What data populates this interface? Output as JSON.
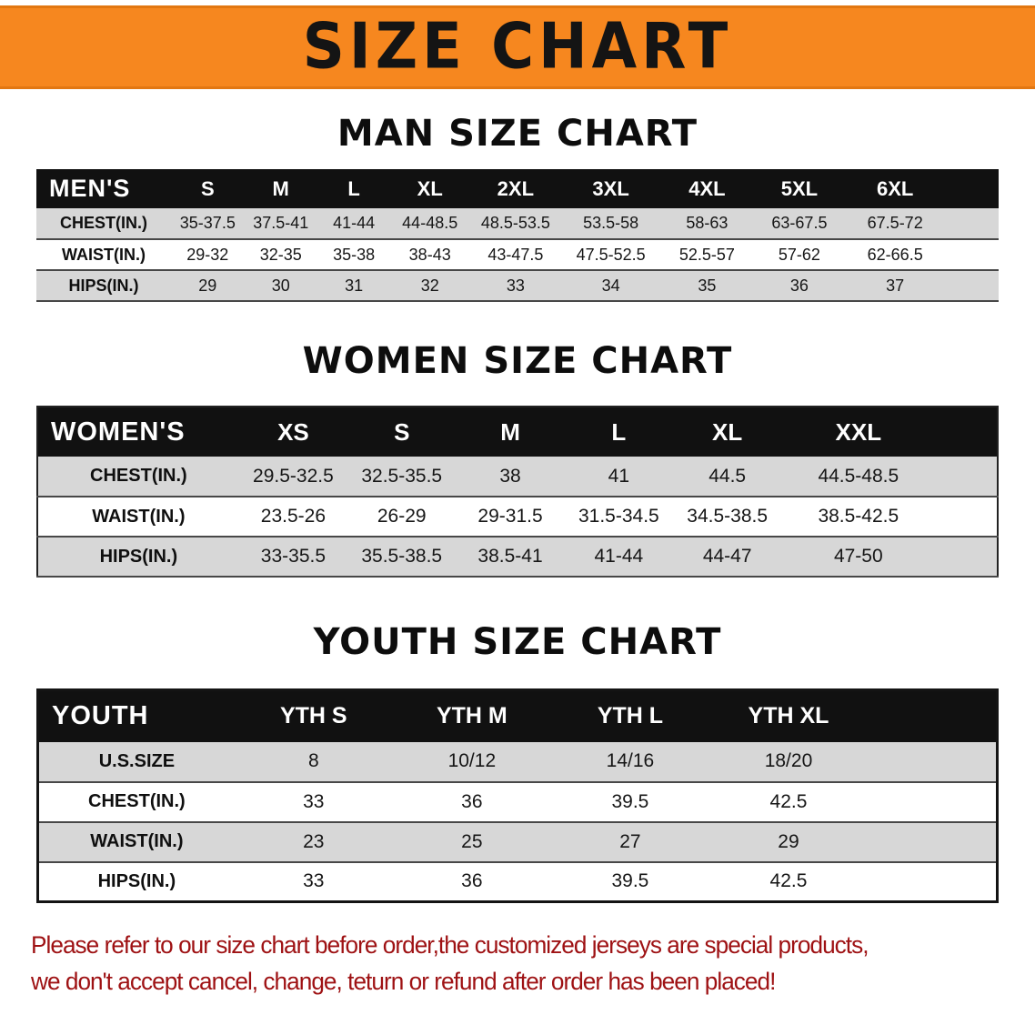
{
  "banner": {
    "title": "SIZE CHART"
  },
  "sections": [
    {
      "heading": "MAN SIZE CHART",
      "table": {
        "title": "MEN'S",
        "columns": [
          "S",
          "M",
          "L",
          "XL",
          "2XL",
          "3XL",
          "4XL",
          "5XL",
          "6XL"
        ],
        "rows": [
          {
            "label": "CHEST(IN.)",
            "values": [
              "35-37.5",
              "37.5-41",
              "41-44",
              "44-48.5",
              "48.5-53.5",
              "53.5-58",
              "58-63",
              "63-67.5",
              "67.5-72"
            ]
          },
          {
            "label": "WAIST(IN.)",
            "values": [
              "29-32",
              "32-35",
              "35-38",
              "38-43",
              "43-47.5",
              "47.5-52.5",
              "52.5-57",
              "57-62",
              "62-66.5"
            ]
          },
          {
            "label": "HIPS(IN.)",
            "values": [
              "29",
              "30",
              "31",
              "32",
              "33",
              "34",
              "35",
              "36",
              "37"
            ]
          }
        ]
      }
    },
    {
      "heading": "WOMEN SIZE CHART",
      "table": {
        "title": "WOMEN'S",
        "columns": [
          "XS",
          "S",
          "M",
          "L",
          "XL",
          "XXL"
        ],
        "rows": [
          {
            "label": "CHEST(IN.)",
            "values": [
              "29.5-32.5",
              "32.5-35.5",
              "38",
              "41",
              "44.5",
              "44.5-48.5"
            ]
          },
          {
            "label": "WAIST(IN.)",
            "values": [
              "23.5-26",
              "26-29",
              "29-31.5",
              "31.5-34.5",
              "34.5-38.5",
              "38.5-42.5"
            ]
          },
          {
            "label": "HIPS(IN.)",
            "values": [
              "33-35.5",
              "35.5-38.5",
              "38.5-41",
              "41-44",
              "44-47",
              "47-50"
            ]
          }
        ]
      }
    },
    {
      "heading": "YOUTH SIZE CHART",
      "table": {
        "title": "YOUTH",
        "columns": [
          "YTH S",
          "YTH M",
          "YTH L",
          "YTH XL"
        ],
        "rows": [
          {
            "label": "U.S.SIZE",
            "values": [
              "8",
              "10/12",
              "14/16",
              "18/20"
            ]
          },
          {
            "label": "CHEST(IN.)",
            "values": [
              "33",
              "36",
              "39.5",
              "42.5"
            ]
          },
          {
            "label": "WAIST(IN.)",
            "values": [
              "23",
              "25",
              "27",
              "29"
            ]
          },
          {
            "label": "HIPS(IN.)",
            "values": [
              "33",
              "36",
              "39.5",
              "42.5"
            ]
          }
        ]
      }
    }
  ],
  "footer": {
    "line1": "Please refer to our size chart before order,the customized jerseys are special products,",
    "line2": "we don't accept cancel, change, teturn or refund after order has been placed!"
  },
  "colors": {
    "banner_orange": "#F6871F",
    "header_black": "#111111",
    "row_shade": "#D7D7D7",
    "footer_red": "#9E1113"
  }
}
